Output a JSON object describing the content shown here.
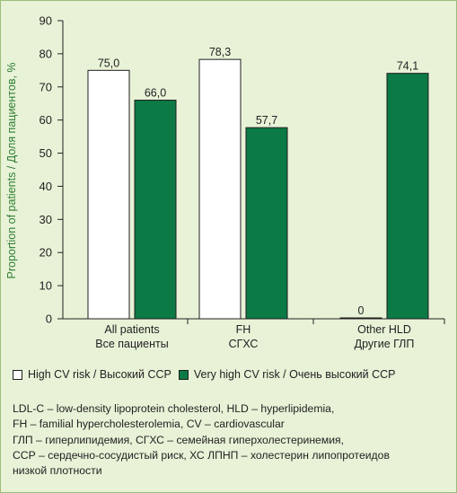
{
  "chart_data": {
    "type": "bar",
    "ylabel": "Proportion of patients / Доля пациентов, %",
    "xlabel": "",
    "ylim": [
      0,
      90
    ],
    "yticks": [
      0,
      10,
      20,
      30,
      40,
      50,
      60,
      70,
      80,
      90
    ],
    "grid": false,
    "legend_position": "bottom",
    "categories": [
      [
        "All patients",
        "Все пациенты"
      ],
      [
        "FH",
        "СГХС"
      ],
      [
        "Other HLD",
        "Другие ГЛП"
      ]
    ],
    "series": [
      {
        "name": "High CV risk / Высокий ССР",
        "color": "#ffffff",
        "values": [
          75.0,
          78.3,
          0
        ],
        "labels": [
          "75,0",
          "78,3",
          "0"
        ]
      },
      {
        "name": "Very high CV risk / Очень высокий ССР",
        "color": "#0b7a45",
        "values": [
          66.0,
          57.7,
          74.1
        ],
        "labels": [
          "66,0",
          "57,7",
          "74,1"
        ]
      }
    ]
  },
  "notes": [
    "LDL-C – low-density lipoprotein cholesterol, HLD – hyperlipidemia,",
    "FH – familial hypercholesterolemia, CV – cardiovascular",
    "ГЛП – гиперлипидемия, СГХС – семейная гиперхолестеринемия,",
    "ССР – сердечно-сосудистый риск, ХС ЛПНП – холестерин липопротеидов",
    "низкой плотности"
  ],
  "colors": {
    "background": "#e8f2d7",
    "accent_green": "#0b7a45",
    "ylabel_color": "#2e7d32"
  }
}
